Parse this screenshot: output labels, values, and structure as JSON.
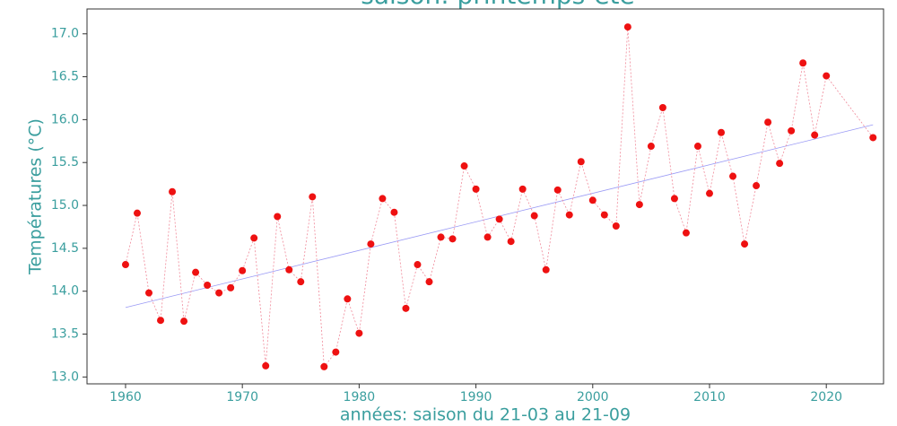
{
  "chart_data": {
    "type": "scatter",
    "title": "saison: printemps-été",
    "xlabel": "années: saison du 21-03 au 21-09",
    "ylabel": "Températures (°C)",
    "x": [
      1960,
      1961,
      1962,
      1963,
      1964,
      1965,
      1966,
      1967,
      1968,
      1969,
      1970,
      1971,
      1972,
      1973,
      1974,
      1975,
      1976,
      1977,
      1978,
      1979,
      1980,
      1981,
      1982,
      1983,
      1984,
      1985,
      1986,
      1987,
      1988,
      1989,
      1990,
      1991,
      1992,
      1993,
      1994,
      1995,
      1996,
      1997,
      1998,
      1999,
      2000,
      2001,
      2002,
      2003,
      2004,
      2005,
      2006,
      2007,
      2008,
      2009,
      2010,
      2011,
      2012,
      2013,
      2014,
      2015,
      2016,
      2017,
      2018,
      2019,
      2020,
      2024
    ],
    "series": [
      {
        "color": "#ee1111",
        "line_color": "#f08a9a",
        "values": [
          14.31,
          14.91,
          13.98,
          13.66,
          15.16,
          13.65,
          14.22,
          14.07,
          13.98,
          14.04,
          14.24,
          14.62,
          13.13,
          14.87,
          14.25,
          14.11,
          15.1,
          13.12,
          13.29,
          13.91,
          13.51,
          14.55,
          15.08,
          14.92,
          13.8,
          14.31,
          14.11,
          14.63,
          14.61,
          15.46,
          15.19,
          14.63,
          14.84,
          14.58,
          15.19,
          14.88,
          14.25,
          15.18,
          14.89,
          15.51,
          15.06,
          14.89,
          14.76,
          17.08,
          15.01,
          15.69,
          16.14,
          15.08,
          14.68,
          15.69,
          15.14,
          15.85,
          15.34,
          14.55,
          15.23,
          15.97,
          15.49,
          15.87,
          16.66,
          15.82,
          16.51,
          15.79
        ]
      }
    ],
    "trend": {
      "x": [
        1960,
        2024
      ],
      "values": [
        13.81,
        15.94
      ],
      "color": "#9a9af5"
    },
    "xlim": [
      1956.7,
      2024.9
    ],
    "ylim": [
      12.92,
      17.29
    ],
    "xticks": [
      1960,
      1970,
      1980,
      1990,
      2000,
      2010,
      2020
    ],
    "yticks": [
      {
        "value": 13,
        "label": "13.0"
      },
      13.5,
      {
        "value": 14,
        "label": "14.0"
      },
      14.5,
      {
        "value": 15,
        "label": "15.0"
      },
      15.5,
      {
        "value": 16,
        "label": "16.0"
      },
      16.5,
      {
        "value": 17,
        "label": "17.0"
      }
    ],
    "text_color": "#3a9e9e"
  }
}
